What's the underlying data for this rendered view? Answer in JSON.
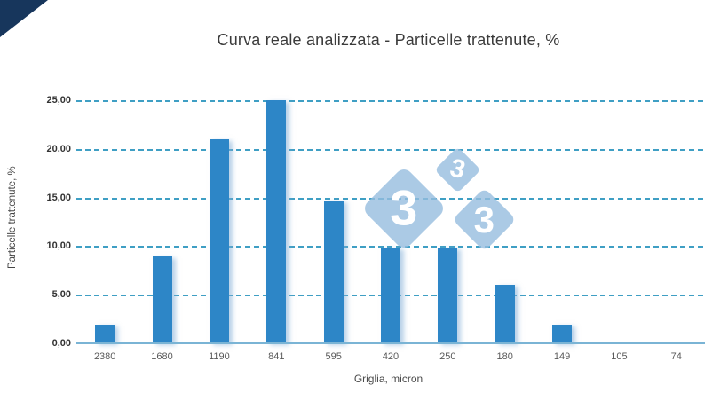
{
  "branding": {
    "corner_fold_color": "#17365C",
    "watermark": {
      "color": "rgba(150,189,223,0.8)",
      "digit_large": "3",
      "digit_small": "3",
      "digit_medium": "3"
    }
  },
  "chart_data": {
    "type": "bar",
    "title": "Curva reale analizzata - Particelle trattenute, %",
    "xlabel": "Griglia, micron",
    "ylabel": "Particelle trattenute, %",
    "categories": [
      "2380",
      "1680",
      "1190",
      "841",
      "595",
      "420",
      "250",
      "180",
      "149",
      "105",
      "74"
    ],
    "values": [
      1.9,
      8.9,
      21.0,
      25.0,
      14.7,
      9.9,
      9.9,
      6.0,
      1.9,
      0,
      0
    ],
    "ylim": [
      0,
      25
    ],
    "ytick_step": 5,
    "ytick_labels": [
      "0,00",
      "5,00",
      "10,00",
      "15,00",
      "20,00",
      "25,00"
    ],
    "grid": "horizontal-dashed",
    "legend": "none",
    "colors": {
      "bar": "#2D86C7",
      "gridline": "#3F9FC4",
      "baseline": "#7AB4D5",
      "xtick_text": "#595959",
      "ytick_text": "#333333",
      "title_text": "#3B3B3B"
    }
  }
}
